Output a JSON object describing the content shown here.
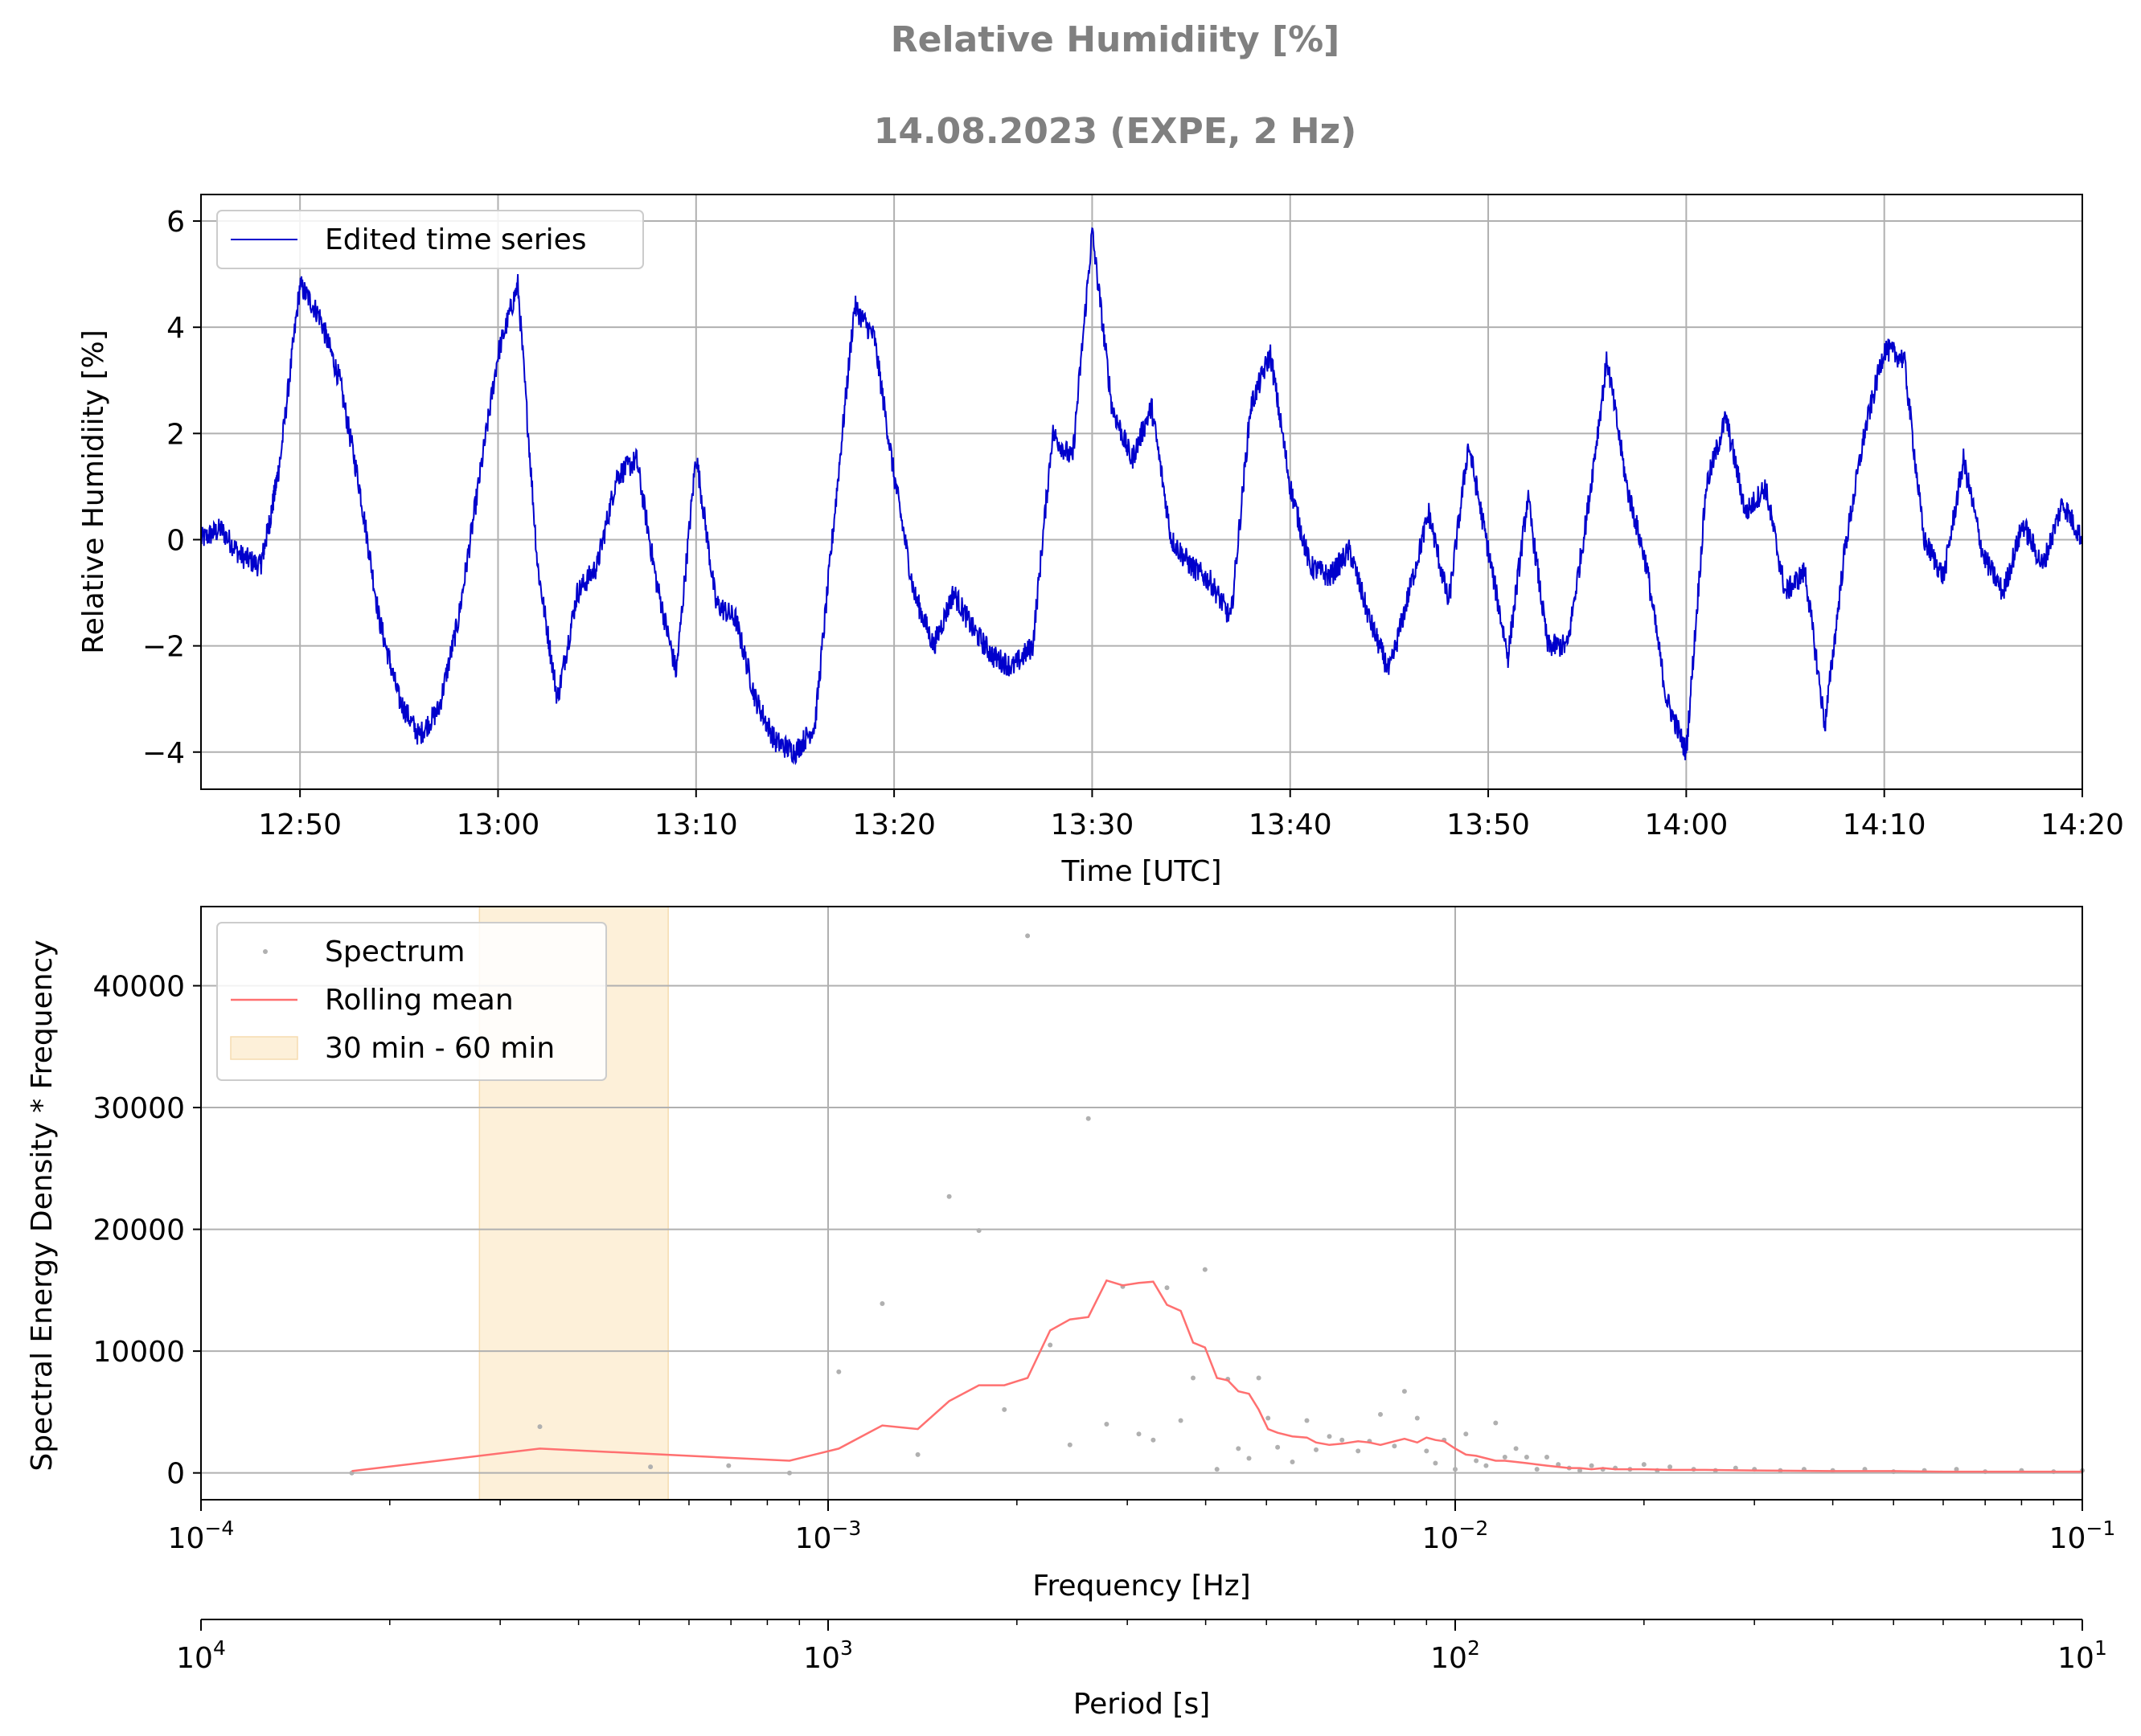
{
  "figure": {
    "title": "Relative Humidiity [%]",
    "subtitle": "14.08.2023 (EXPE, 2 Hz)"
  },
  "colors": {
    "series": "#0000cc",
    "spectrum": "#b0b0b0",
    "rolling_mean": "#ff7070",
    "band": "#fdf0d9",
    "band_edge": "#f5dcb0",
    "grid": "#b0b0b0",
    "title": "#808080"
  },
  "chart_data": [
    {
      "type": "line",
      "xlabel": "Time [UTC]",
      "ylabel": "Relative Humidiity [%]",
      "x_ticks": [
        "12:50",
        "13:00",
        "13:10",
        "13:20",
        "13:30",
        "13:40",
        "13:50",
        "14:00",
        "14:10",
        "14:20"
      ],
      "y_ticks": [
        "6",
        "4",
        "2",
        "0",
        "−2",
        "−4"
      ],
      "xlim": [
        "12:45",
        "14:20"
      ],
      "ylim": [
        -4.7,
        6.5
      ],
      "grid": true,
      "legend_placement": "upper-left",
      "series": [
        {
          "name": "Edited time series",
          "x": [
            "12:45",
            "12:46",
            "12:47",
            "12:48",
            "12:48.5",
            "12:49",
            "12:50",
            "12:51",
            "12:52",
            "12:53",
            "12:54",
            "12:55",
            "12:56",
            "12:57",
            "12:58",
            "12:59",
            "13:00",
            "13:01",
            "13:02",
            "13:03",
            "13:04",
            "13:05",
            "13:06",
            "13:07",
            "13:08",
            "13:09",
            "13:10",
            "13:11",
            "13:12",
            "13:13",
            "13:14",
            "13:15",
            "13:16",
            "13:17",
            "13:18",
            "13:19",
            "13:20",
            "13:21",
            "13:22",
            "13:23",
            "13:24",
            "13:25",
            "13:26",
            "13:27",
            "13:28",
            "13:29",
            "13:30",
            "13:31",
            "13:32",
            "13:33",
            "13:34",
            "13:35",
            "13:36",
            "13:37",
            "13:38",
            "13:39",
            "13:40",
            "13:41",
            "13:42",
            "13:43",
            "13:44",
            "13:45",
            "13:46",
            "13:47",
            "13:48",
            "13:49",
            "13:50",
            "13:51",
            "13:52",
            "13:53",
            "13:54",
            "13:55",
            "13:56",
            "13:57",
            "13:58",
            "13:59",
            "14:00",
            "14:01",
            "14:02",
            "14:03",
            "14:04",
            "14:05",
            "14:06",
            "14:07",
            "14:08",
            "14:09",
            "14:10",
            "14:11",
            "14:12",
            "14:13",
            "14:14",
            "14:15",
            "14:16",
            "14:17",
            "14:18",
            "14:19",
            "14:20"
          ],
          "y": [
            0.0,
            0.2,
            -0.3,
            -0.5,
            0.4,
            1.5,
            4.8,
            4.2,
            3.0,
            1.0,
            -1.5,
            -3.0,
            -3.7,
            -3.2,
            -1.5,
            1.0,
            3.5,
            4.8,
            -0.5,
            -3.0,
            -1.0,
            -0.5,
            1.2,
            1.5,
            -0.8,
            -2.5,
            1.6,
            -1.2,
            -1.5,
            -3.0,
            -3.8,
            -4.0,
            -3.5,
            0.5,
            4.4,
            3.8,
            1.2,
            -1.0,
            -2.0,
            -1.0,
            -1.7,
            -2.2,
            -2.4,
            -2.0,
            2.0,
            1.5,
            5.8,
            2.5,
            1.5,
            2.5,
            0.0,
            -0.5,
            -0.8,
            -1.5,
            2.5,
            3.5,
            1.0,
            -0.5,
            -0.7,
            -0.2,
            -1.5,
            -2.5,
            -1.0,
            0.5,
            -1.2,
            1.8,
            -0.2,
            -2.2,
            0.8,
            -2.0,
            -2.0,
            0.5,
            3.4,
            1.0,
            -0.5,
            -3.0,
            -4.0,
            1.0,
            2.3,
            0.5,
            1.0,
            -1.0,
            -0.6,
            -3.5,
            -0.2,
            2.0,
            3.6,
            3.4,
            0.0,
            -0.7,
            1.5,
            -0.3,
            -1.0,
            0.3,
            -0.5,
            0.7,
            0.0
          ]
        }
      ]
    },
    {
      "type": "scatter",
      "xlabel": "Frequency [Hz]",
      "ylabel": "Spectral Energy Density * Frequency",
      "secondary_xlabel": "Period [s]",
      "x_scale": "log",
      "xlim": [
        0.0001,
        0.1
      ],
      "ylim": [
        -2200,
        46500
      ],
      "y_ticks": [
        "40000",
        "30000",
        "20000",
        "10000",
        "0"
      ],
      "x_ticks": [
        {
          "base": "10",
          "exp": "−4"
        },
        {
          "base": "10",
          "exp": "−3"
        },
        {
          "base": "10",
          "exp": "−2"
        },
        {
          "base": "10",
          "exp": "−1"
        }
      ],
      "period_ticks": [
        {
          "base": "10",
          "exp": "4"
        },
        {
          "base": "10",
          "exp": "3"
        },
        {
          "base": "10",
          "exp": "2"
        },
        {
          "base": "10",
          "exp": "1"
        }
      ],
      "grid": true,
      "legend_placement": "upper-left",
      "shaded_band": {
        "name": "30 min - 60 min",
        "x": [
          0.000278,
          0.000556
        ]
      },
      "series": [
        {
          "name": "Spectrum",
          "x": [
            0.000174,
            0.000347,
            0.000521,
            0.000694,
            0.000868,
            0.00104,
            0.00122,
            0.00139,
            0.00156,
            0.00174,
            0.00191,
            0.00208,
            0.00226,
            0.00243,
            0.0026,
            0.00278,
            0.00295,
            0.00313,
            0.0033,
            0.00347,
            0.00365,
            0.00382,
            0.00399,
            0.00417,
            0.00434,
            0.00451,
            0.00469,
            0.00486,
            0.00503,
            0.00521,
            0.0055,
            0.0058,
            0.006,
            0.0063,
            0.0066,
            0.007,
            0.0073,
            0.0076,
            0.008,
            0.0083,
            0.0087,
            0.009,
            0.0093,
            0.0096,
            0.01,
            0.0104,
            0.0108,
            0.0112,
            0.0116,
            0.012,
            0.0125,
            0.013,
            0.0135,
            0.014,
            0.0146,
            0.0152,
            0.0158,
            0.0165,
            0.0172,
            0.018,
            0.019,
            0.02,
            0.021,
            0.022,
            0.024,
            0.026,
            0.028,
            0.03,
            0.033,
            0.036,
            0.04,
            0.045,
            0.05,
            0.056,
            0.063,
            0.07,
            0.08,
            0.09,
            0.1
          ],
          "y": [
            0,
            3800,
            500,
            600,
            0,
            8300,
            13900,
            1500,
            22700,
            19900,
            5200,
            44100,
            10500,
            2300,
            29100,
            4000,
            15300,
            3200,
            2700,
            15200,
            4300,
            7800,
            16700,
            300,
            7700,
            2000,
            1200,
            7800,
            4500,
            2100,
            900,
            4300,
            1900,
            3000,
            2700,
            1800,
            2600,
            4800,
            2200,
            6700,
            4500,
            1800,
            800,
            2700,
            300,
            3200,
            1000,
            600,
            4100,
            1300,
            2000,
            1300,
            300,
            1300,
            700,
            400,
            200,
            600,
            300,
            400,
            300,
            700,
            200,
            500,
            300,
            200,
            400,
            300,
            200,
            300,
            200,
            300,
            100,
            200,
            300,
            100,
            200,
            100,
            200
          ]
        },
        {
          "name": "Rolling mean",
          "x": [
            0.000174,
            0.000347,
            0.000868,
            0.00104,
            0.00122,
            0.00139,
            0.00156,
            0.00174,
            0.00191,
            0.00208,
            0.00226,
            0.00243,
            0.0026,
            0.00278,
            0.00295,
            0.00313,
            0.0033,
            0.00347,
            0.00365,
            0.00382,
            0.00399,
            0.00417,
            0.00434,
            0.00451,
            0.00469,
            0.00486,
            0.00503,
            0.00521,
            0.0055,
            0.0058,
            0.006,
            0.0063,
            0.0066,
            0.007,
            0.0073,
            0.0076,
            0.008,
            0.0083,
            0.0087,
            0.009,
            0.0093,
            0.0096,
            0.01,
            0.0104,
            0.0108,
            0.0112,
            0.0116,
            0.012,
            0.0125,
            0.013,
            0.0135,
            0.014,
            0.0146,
            0.0152,
            0.0158,
            0.0165,
            0.0172,
            0.018,
            0.019,
            0.02,
            0.022,
            0.025,
            0.03,
            0.04,
            0.05,
            0.06,
            0.08,
            0.1
          ],
          "y": [
            150,
            2000,
            1000,
            2000,
            3900,
            3600,
            5900,
            7200,
            7200,
            7800,
            11700,
            12600,
            12800,
            15800,
            15400,
            15600,
            15700,
            13800,
            13300,
            10700,
            10300,
            7800,
            7600,
            6700,
            6500,
            5200,
            3600,
            3300,
            3000,
            2900,
            2500,
            2300,
            2400,
            2600,
            2500,
            2300,
            2600,
            2800,
            2500,
            2900,
            2700,
            2600,
            2000,
            1500,
            1400,
            1200,
            1000,
            1000,
            900,
            800,
            700,
            600,
            500,
            400,
            400,
            300,
            400,
            300,
            300,
            300,
            250,
            250,
            200,
            150,
            150,
            100,
            100,
            100
          ]
        }
      ]
    }
  ]
}
